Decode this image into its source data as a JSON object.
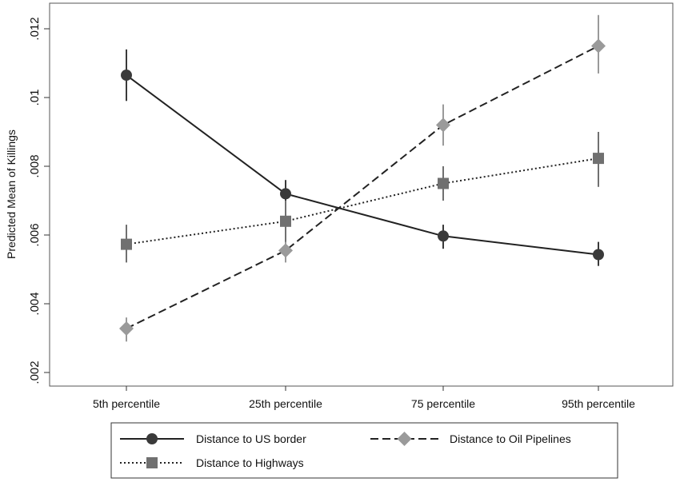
{
  "chart_data": {
    "type": "line",
    "title": "",
    "xlabel": "",
    "ylabel": "Predicted Mean of Killings",
    "categories": [
      "5th percentile",
      "25th percentile",
      "75 percentile",
      "95th percentile"
    ],
    "ylim": [
      0.0018,
      0.0124
    ],
    "yticks": [
      0.002,
      0.004,
      0.006,
      0.008,
      0.01,
      0.012
    ],
    "ytick_labels": [
      ".002",
      ".004",
      ".006",
      ".008",
      ".01",
      ".012"
    ],
    "grid": false,
    "legend_position": "bottom",
    "series": [
      {
        "name": "Distance to US border",
        "line_style": "solid",
        "marker": "circle",
        "color": "#3a3a3a",
        "values": [
          0.01065,
          0.0072,
          0.00597,
          0.00543
        ],
        "ci_low": [
          0.0099,
          0.0068,
          0.0056,
          0.0051
        ],
        "ci_high": [
          0.0114,
          0.0076,
          0.0063,
          0.0058
        ]
      },
      {
        "name": "Distance to Oil Pipelines",
        "line_style": "dashed",
        "marker": "diamond",
        "color": "#9a9a9a",
        "values": [
          0.00328,
          0.00555,
          0.0092,
          0.0115
        ],
        "ci_low": [
          0.0029,
          0.0052,
          0.0086,
          0.0107
        ],
        "ci_high": [
          0.0036,
          0.0059,
          0.0098,
          0.0124
        ]
      },
      {
        "name": "Distance to Highways",
        "line_style": "dotted",
        "marker": "square",
        "color": "#707070",
        "values": [
          0.00573,
          0.0064,
          0.0075,
          0.00823
        ],
        "ci_low": [
          0.0052,
          0.0058,
          0.007,
          0.0074
        ],
        "ci_high": [
          0.0063,
          0.007,
          0.008,
          0.009
        ]
      }
    ]
  }
}
